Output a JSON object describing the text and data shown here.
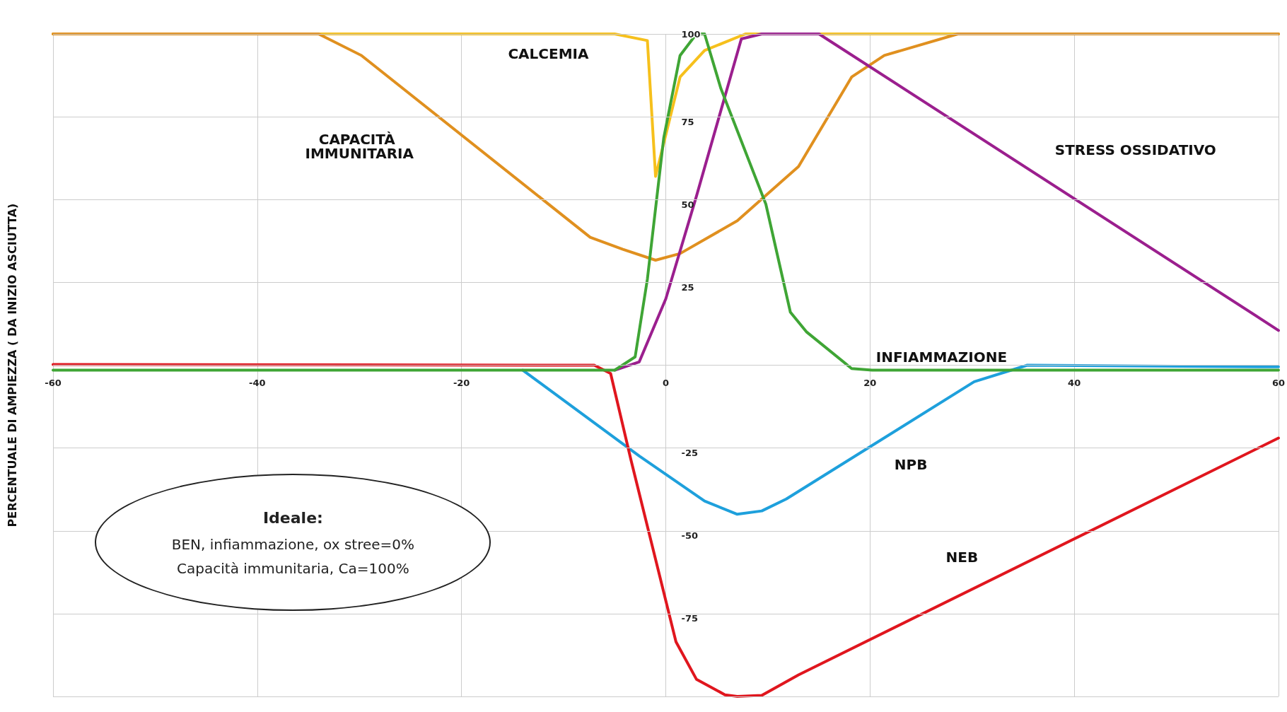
{
  "chart_data": {
    "type": "line",
    "ylabel": "PERCENTUALE DI AMPIEZZA ( DA INIZIO ASCIUTTA)",
    "xlim": [
      -60,
      60
    ],
    "ylim": [
      -100,
      100
    ],
    "xticks": [
      -60,
      -40,
      -20,
      0,
      20,
      40,
      60
    ],
    "yticks": [
      -75,
      -50,
      -25,
      25,
      50,
      75,
      100
    ],
    "grid": true,
    "legend": false,
    "marker": "none",
    "line_style": "solid",
    "series": [
      {
        "name": "CALCEMIA",
        "color": "#f6c01c",
        "x": [
          -60,
          -5,
          -1.8,
          -1,
          1.4,
          3.8,
          7.8,
          60
        ],
        "values": [
          100,
          100,
          98,
          57,
          87,
          95,
          100,
          100
        ]
      },
      {
        "name": "CAPACITÀ IMMUNITARIA",
        "color": "#e0901f",
        "x": [
          -60,
          -34,
          -29.8,
          -7.4,
          -4.2,
          -1,
          1.4,
          7,
          13,
          18.2,
          21.4,
          28.6,
          60
        ],
        "values": [
          100,
          100,
          93.5,
          38.6,
          35,
          31.7,
          33.7,
          43.6,
          60,
          87,
          93.5,
          100,
          100
        ]
      },
      {
        "name": "STRESS OSSIDATIVO",
        "color": "#9b1f8e",
        "x": [
          -5,
          -2.6,
          0,
          3,
          7.4,
          9.4,
          15,
          60
        ],
        "values": [
          -1.5,
          1,
          20,
          51,
          98.5,
          100,
          100,
          10.5
        ]
      },
      {
        "name": "NPB",
        "color": "#1ea0dc",
        "x": [
          -14,
          -2.6,
          3.8,
          7,
          9.4,
          11.8,
          30.2,
          35.4,
          60
        ],
        "values": [
          -1.5,
          -27.4,
          -41,
          -45,
          -44,
          -40.4,
          -5,
          0,
          -0.5
        ]
      },
      {
        "name": "NEB",
        "color": "#e0161e",
        "x": [
          -60,
          -7,
          -5.4,
          -3.4,
          -1,
          1,
          3,
          5.8,
          7,
          9.4,
          13,
          60
        ],
        "values": [
          0.2,
          0,
          -2.5,
          -28.7,
          -58.6,
          -83.5,
          -94.8,
          -99.5,
          -100,
          -99.7,
          -93.5,
          -22
        ]
      },
      {
        "name": "INFIAMMAZIONE",
        "color": "#3fa535",
        "x": [
          -60,
          -5,
          -3,
          -1.8,
          -0.2,
          1.4,
          3,
          3.8,
          5.4,
          9.8,
          12.2,
          13.8,
          18.2,
          20.2,
          60
        ],
        "values": [
          -1.5,
          -1.5,
          2.5,
          26,
          68.6,
          93.5,
          100,
          100,
          83.5,
          48.6,
          16,
          10,
          -1,
          -1.5,
          -1.5
        ]
      }
    ],
    "annotations": [
      "Ideale:",
      "BEN, infiammazione, ox stree=0%",
      "Capacità immunitaria, Ca=100%"
    ]
  }
}
